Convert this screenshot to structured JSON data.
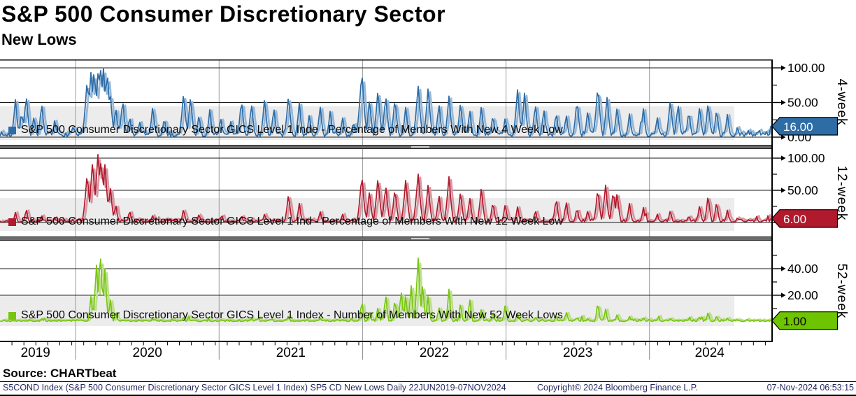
{
  "header": {
    "title": "S&P 500 Consumer Discretionary Sector",
    "subtitle": "New Lows"
  },
  "source_label": "Source: CHARTbeat",
  "footer": {
    "left": "S5COND Index (S&P 500 Consumer Discretionary Sector GICS Level 1 Index) SP5 CD New Lows  Daily 22JUN2019-07NOV2024",
    "center": "Copyright© 2024 Bloomberg Finance L.P.",
    "right": "07-Nov-2024 06:53:15",
    "color": "#23295f"
  },
  "x_axis": {
    "start": "22JUN2019",
    "end": "07NOV2024",
    "boundaries": [
      0.098,
      0.284,
      0.47,
      0.656,
      0.842
    ],
    "years": [
      {
        "label": "2019",
        "center": 0.046
      },
      {
        "label": "2020",
        "center": 0.191
      },
      {
        "label": "2021",
        "center": 0.377
      },
      {
        "label": "2022",
        "center": 0.563
      },
      {
        "label": "2023",
        "center": 0.749
      },
      {
        "label": "2024",
        "center": 0.92
      }
    ]
  },
  "colors": {
    "grid_vertical": "#999999",
    "grid_horizontal": "#1a1a1a",
    "legend_band": "#ececec",
    "separator": "#6a6b6e",
    "axis": "#000000"
  },
  "chart_data": [
    {
      "type": "line",
      "name": "4-week",
      "legend": "S&P 500 Consumer Discretionary Sector GICS Level 1 Inde - Percentage of Members With New 4 Week Low",
      "color": "#2e6ca5",
      "color_light": "#96b9da",
      "tag": {
        "label": "16.00",
        "fill": "#2e6ca5",
        "text_color": "#ffffff"
      },
      "last_value": 16,
      "ylim": [
        0,
        112
      ],
      "yticks": [
        {
          "v": 100,
          "label": "100.00"
        },
        {
          "v": 75
        },
        {
          "v": 50,
          "label": "50.00"
        },
        {
          "v": 25
        },
        {
          "v": 0,
          "label": "0.00"
        }
      ],
      "spikes": [
        [
          0.02,
          55
        ],
        [
          0.028,
          38
        ],
        [
          0.034,
          62
        ],
        [
          0.044,
          32
        ],
        [
          0.054,
          50
        ],
        [
          0.071,
          26
        ],
        [
          0.095,
          18
        ],
        [
          0.113,
          85
        ],
        [
          0.118,
          96
        ],
        [
          0.122,
          100
        ],
        [
          0.127,
          93
        ],
        [
          0.13,
          107
        ],
        [
          0.134,
          103
        ],
        [
          0.139,
          97
        ],
        [
          0.143,
          62
        ],
        [
          0.15,
          45
        ],
        [
          0.159,
          56
        ],
        [
          0.168,
          32
        ],
        [
          0.181,
          24
        ],
        [
          0.198,
          46
        ],
        [
          0.213,
          30
        ],
        [
          0.238,
          66
        ],
        [
          0.247,
          60
        ],
        [
          0.258,
          34
        ],
        [
          0.272,
          40
        ],
        [
          0.286,
          30
        ],
        [
          0.299,
          24
        ],
        [
          0.313,
          56
        ],
        [
          0.326,
          50
        ],
        [
          0.343,
          57
        ],
        [
          0.355,
          44
        ],
        [
          0.374,
          62
        ],
        [
          0.388,
          50
        ],
        [
          0.401,
          34
        ],
        [
          0.415,
          46
        ],
        [
          0.428,
          38
        ],
        [
          0.444,
          30
        ],
        [
          0.458,
          24
        ],
        [
          0.469,
          97
        ],
        [
          0.479,
          55
        ],
        [
          0.49,
          70
        ],
        [
          0.5,
          62
        ],
        [
          0.512,
          58
        ],
        [
          0.526,
          45
        ],
        [
          0.542,
          76
        ],
        [
          0.555,
          72
        ],
        [
          0.569,
          50
        ],
        [
          0.582,
          60
        ],
        [
          0.597,
          52
        ],
        [
          0.609,
          40
        ],
        [
          0.624,
          46
        ],
        [
          0.639,
          34
        ],
        [
          0.655,
          30
        ],
        [
          0.671,
          70
        ],
        [
          0.68,
          64
        ],
        [
          0.694,
          50
        ],
        [
          0.705,
          42
        ],
        [
          0.721,
          38
        ],
        [
          0.734,
          34
        ],
        [
          0.748,
          56
        ],
        [
          0.762,
          40
        ],
        [
          0.775,
          76
        ],
        [
          0.787,
          58
        ],
        [
          0.8,
          45
        ],
        [
          0.816,
          34
        ],
        [
          0.834,
          42
        ],
        [
          0.852,
          30
        ],
        [
          0.869,
          56
        ],
        [
          0.879,
          50
        ],
        [
          0.893,
          40
        ],
        [
          0.907,
          46
        ],
        [
          0.918,
          52
        ],
        [
          0.929,
          42
        ],
        [
          0.943,
          34
        ],
        [
          0.956,
          16
        ],
        [
          0.97,
          10
        ],
        [
          0.984,
          12
        ],
        [
          1.0,
          16
        ]
      ]
    },
    {
      "type": "line",
      "name": "12-week",
      "legend": "S&P 500 Consumer Discretionary Sector GICS Level 1 Ind - Percentage of Members With New 12 Week Low",
      "color": "#b11a2d",
      "color_light": "#d899a3",
      "tag": {
        "label": "6.00",
        "fill": "#b11a2d",
        "text_color": "#ffffff"
      },
      "last_value": 6,
      "ylim": [
        0,
        114
      ],
      "yticks": [
        {
          "v": 100,
          "label": "100.00"
        },
        {
          "v": 75
        },
        {
          "v": 50,
          "label": "50.00"
        },
        {
          "v": 25
        },
        {
          "v": 0,
          "label": "0.00"
        }
      ],
      "spikes": [
        [
          0.02,
          16
        ],
        [
          0.034,
          22
        ],
        [
          0.054,
          12
        ],
        [
          0.071,
          8
        ],
        [
          0.113,
          78
        ],
        [
          0.12,
          96
        ],
        [
          0.127,
          107
        ],
        [
          0.131,
          100
        ],
        [
          0.136,
          90
        ],
        [
          0.143,
          56
        ],
        [
          0.15,
          30
        ],
        [
          0.168,
          20
        ],
        [
          0.198,
          12
        ],
        [
          0.238,
          22
        ],
        [
          0.258,
          14
        ],
        [
          0.286,
          10
        ],
        [
          0.313,
          12
        ],
        [
          0.343,
          14
        ],
        [
          0.374,
          46
        ],
        [
          0.388,
          30
        ],
        [
          0.415,
          18
        ],
        [
          0.444,
          14
        ],
        [
          0.469,
          76
        ],
        [
          0.479,
          50
        ],
        [
          0.49,
          72
        ],
        [
          0.5,
          60
        ],
        [
          0.512,
          55
        ],
        [
          0.526,
          68
        ],
        [
          0.542,
          78
        ],
        [
          0.555,
          60
        ],
        [
          0.569,
          45
        ],
        [
          0.582,
          72
        ],
        [
          0.597,
          50
        ],
        [
          0.609,
          40
        ],
        [
          0.624,
          55
        ],
        [
          0.639,
          34
        ],
        [
          0.655,
          30
        ],
        [
          0.671,
          25
        ],
        [
          0.694,
          20
        ],
        [
          0.721,
          40
        ],
        [
          0.734,
          34
        ],
        [
          0.748,
          25
        ],
        [
          0.762,
          20
        ],
        [
          0.775,
          55
        ],
        [
          0.785,
          60
        ],
        [
          0.795,
          52
        ],
        [
          0.8,
          48
        ],
        [
          0.816,
          30
        ],
        [
          0.834,
          24
        ],
        [
          0.852,
          14
        ],
        [
          0.869,
          20
        ],
        [
          0.893,
          12
        ],
        [
          0.907,
          28
        ],
        [
          0.918,
          44
        ],
        [
          0.929,
          34
        ],
        [
          0.943,
          20
        ],
        [
          0.956,
          8
        ],
        [
          0.975,
          5
        ],
        [
          1.0,
          6
        ]
      ]
    },
    {
      "type": "line",
      "name": "52-week",
      "legend": "S&P 500 Consumer Discretionary Sector GICS Level 1 Index - Number of Members With New 52 Week Lows",
      "color": "#79c511",
      "color_light": "#bce08c",
      "tag": {
        "label": "1.00",
        "fill": "#6ec400",
        "text_color": "#000000"
      },
      "last_value": 1,
      "ylim": [
        0,
        61
      ],
      "yticks": [
        {
          "v": 50
        },
        {
          "v": 40,
          "label": "40.00"
        },
        {
          "v": 30
        },
        {
          "v": 20,
          "label": "20.00"
        },
        {
          "v": 10
        },
        {
          "v": 0
        }
      ],
      "spikes": [
        [
          0.054,
          3
        ],
        [
          0.095,
          2
        ],
        [
          0.118,
          20
        ],
        [
          0.125,
          44
        ],
        [
          0.13,
          55
        ],
        [
          0.136,
          40
        ],
        [
          0.143,
          18
        ],
        [
          0.15,
          8
        ],
        [
          0.198,
          3
        ],
        [
          0.238,
          4
        ],
        [
          0.286,
          2
        ],
        [
          0.326,
          3
        ],
        [
          0.374,
          5
        ],
        [
          0.415,
          3
        ],
        [
          0.444,
          2
        ],
        [
          0.469,
          17
        ],
        [
          0.479,
          8
        ],
        [
          0.49,
          12
        ],
        [
          0.5,
          22
        ],
        [
          0.512,
          18
        ],
        [
          0.52,
          25
        ],
        [
          0.526,
          20
        ],
        [
          0.533,
          28
        ],
        [
          0.542,
          50
        ],
        [
          0.548,
          30
        ],
        [
          0.555,
          20
        ],
        [
          0.569,
          12
        ],
        [
          0.582,
          25
        ],
        [
          0.597,
          15
        ],
        [
          0.609,
          18
        ],
        [
          0.624,
          10
        ],
        [
          0.639,
          8
        ],
        [
          0.655,
          14
        ],
        [
          0.671,
          6
        ],
        [
          0.694,
          4
        ],
        [
          0.721,
          5
        ],
        [
          0.734,
          8
        ],
        [
          0.748,
          4
        ],
        [
          0.762,
          3
        ],
        [
          0.775,
          16
        ],
        [
          0.785,
          10
        ],
        [
          0.8,
          6
        ],
        [
          0.816,
          4
        ],
        [
          0.834,
          3
        ],
        [
          0.852,
          2
        ],
        [
          0.869,
          3
        ],
        [
          0.893,
          2
        ],
        [
          0.907,
          4
        ],
        [
          0.918,
          8
        ],
        [
          0.929,
          5
        ],
        [
          0.943,
          3
        ],
        [
          0.956,
          2
        ],
        [
          0.975,
          1.5
        ],
        [
          1.0,
          1
        ]
      ]
    }
  ]
}
